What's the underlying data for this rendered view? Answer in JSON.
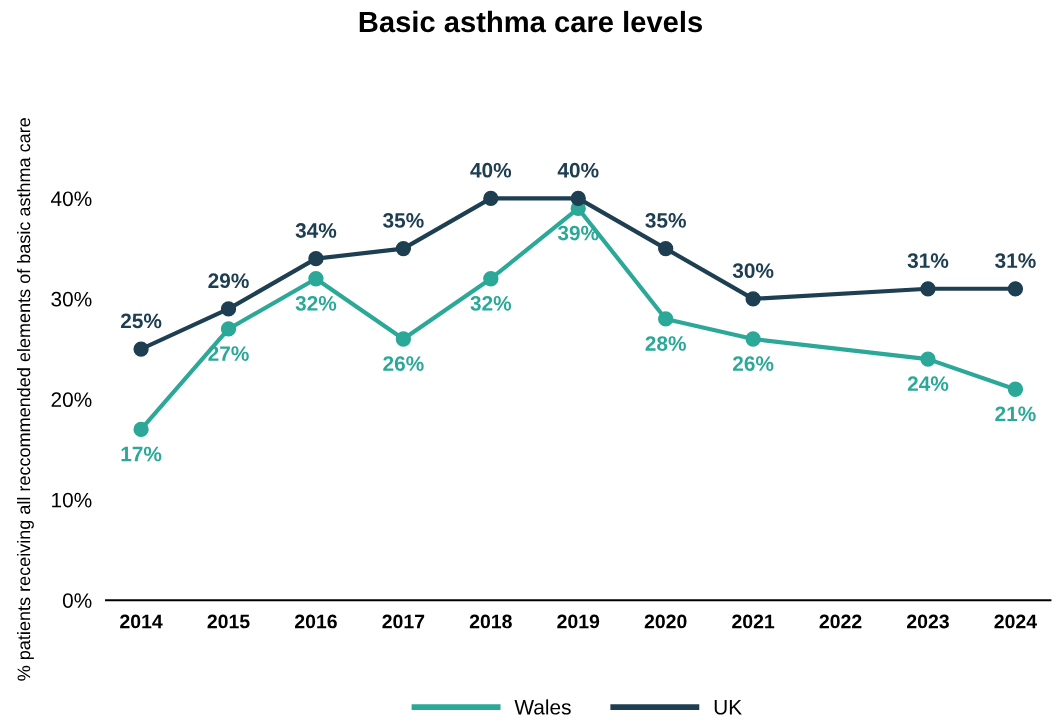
{
  "chart_data": {
    "type": "line",
    "title": "Basic asthma care levels",
    "ylabel": "% patients receiving all reccommended elements of basic asthma care",
    "categories": [
      "2014",
      "2015",
      "2016",
      "2017",
      "2018",
      "2019",
      "2020",
      "2021",
      "2022",
      "2023",
      "2024"
    ],
    "series": [
      {
        "name": "Wales",
        "color": "#2ba897",
        "values": [
          17,
          27,
          32,
          26,
          32,
          39,
          28,
          26,
          null,
          24,
          21
        ],
        "value_labels": [
          "17%",
          "27%",
          "32%",
          "26%",
          "32%",
          "39%",
          "28%",
          "26%",
          null,
          "24%",
          "21%"
        ]
      },
      {
        "name": "UK",
        "color": "#1e3e52",
        "values": [
          25,
          29,
          34,
          35,
          40,
          40,
          35,
          30,
          null,
          31,
          31
        ],
        "value_labels": [
          "25%",
          "29%",
          "34%",
          "35%",
          "40%",
          "40%",
          "35%",
          "30%",
          null,
          "31%",
          "31%"
        ]
      }
    ],
    "ylim": [
      0,
      40
    ],
    "yticks": [
      {
        "value": 0,
        "label": "0%"
      },
      {
        "value": 10,
        "label": "10%"
      },
      {
        "value": 20,
        "label": "20%"
      },
      {
        "value": 30,
        "label": "30%"
      },
      {
        "value": 40,
        "label": "40%"
      }
    ],
    "marker": "circle",
    "line_style": "solid",
    "legend": "bottom",
    "grid": false
  }
}
